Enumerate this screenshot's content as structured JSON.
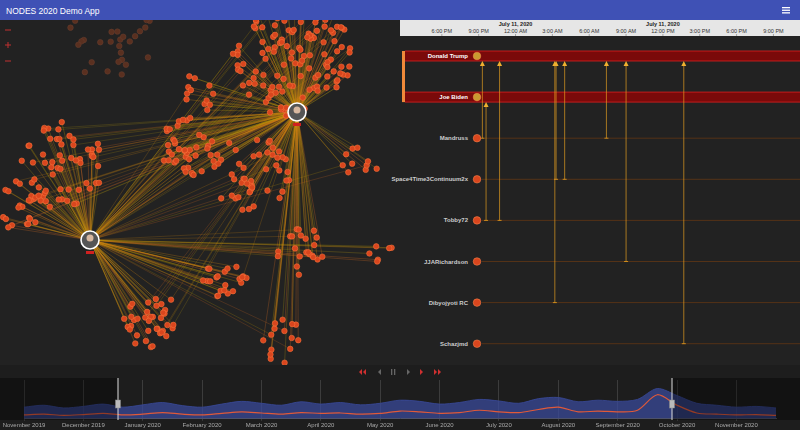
{
  "header": {
    "title": "NODES 2020 Demo App"
  },
  "timeline": {
    "xlim": [
      0,
      32
    ],
    "xticks": [
      {
        "value": 3,
        "label": "6:00 PM"
      },
      {
        "value": 6,
        "label": "9:00 PM"
      },
      {
        "value": 9,
        "label": "12:00 AM"
      },
      {
        "value": 12,
        "label": "3:00 AM"
      },
      {
        "value": 15,
        "label": "6:00 AM"
      },
      {
        "value": 18,
        "label": "9:00 AM"
      },
      {
        "value": 21,
        "label": "12:00 PM"
      },
      {
        "value": 24,
        "label": "3:00 PM"
      },
      {
        "value": 27,
        "label": "6:00 PM"
      },
      {
        "value": 30,
        "label": "9:00 PM"
      }
    ],
    "dates": [
      {
        "value": 9,
        "label": "July 11, 2020"
      },
      {
        "value": 21,
        "label": "July 11, 2020"
      }
    ],
    "rows": [
      {
        "label": "Donald Trump",
        "highlight": true
      },
      {
        "label": "Joe Biden",
        "highlight": true
      },
      {
        "label": "Mandruss",
        "highlight": false
      },
      {
        "label": "Space4Time3Continuum2x",
        "highlight": false
      },
      {
        "label": "Tobby72",
        "highlight": false
      },
      {
        "label": "JJARichardson",
        "highlight": false
      },
      {
        "label": "Dibyojyoti RC",
        "highlight": false
      },
      {
        "label": "Schazjmd",
        "highlight": false
      }
    ],
    "events": [
      {
        "from": "Mandruss",
        "to": "Donald Trump",
        "x": 6.3
      },
      {
        "from": "Tobby72",
        "to": "Joe Biden",
        "x": 6.6
      },
      {
        "from": "Tobby72",
        "to": "Donald Trump",
        "x": 7.7
      },
      {
        "from": "Dibyojyoti RC",
        "to": "Donald Trump",
        "x": 12.2
      },
      {
        "from": "Space4Time3Continuum2x",
        "to": "Donald Trump",
        "x": 12.3
      },
      {
        "from": "Space4Time3Continuum2x",
        "to": "Donald Trump",
        "x": 13.0
      },
      {
        "from": "Mandruss",
        "to": "Donald Trump",
        "x": 16.4
      },
      {
        "from": "JJARichardson",
        "to": "Donald Trump",
        "x": 18.0
      },
      {
        "from": "Schazjmd",
        "to": "Donald Trump",
        "x": 22.7
      }
    ]
  },
  "chart_data": {
    "type": "line",
    "categories": [
      "November 2019",
      null,
      null,
      "December 2019",
      null,
      null,
      "January 2020",
      null,
      null,
      "February 2020",
      null,
      null,
      "March 2020",
      null,
      null,
      "April 2020",
      null,
      null,
      "May 2020",
      null,
      null,
      "June 2020",
      null,
      null,
      "July 2020",
      null,
      null,
      "August 2020",
      null,
      null,
      "September 2020",
      null,
      null,
      "October 2020",
      null,
      null,
      "November 2020",
      null,
      null
    ],
    "series": [
      {
        "type": "area",
        "color": "#3a4a9a",
        "values": [
          30,
          35,
          28,
          32,
          38,
          30,
          36,
          42,
          34,
          30,
          38,
          45,
          40,
          35,
          44,
          38,
          42,
          36,
          40,
          48,
          45,
          38,
          42,
          50,
          46,
          40,
          52,
          55,
          44,
          48,
          45,
          50,
          78,
          60,
          40,
          35,
          30,
          32,
          28
        ]
      },
      {
        "type": "line",
        "color": "#e05a3a",
        "values": [
          10,
          12,
          9,
          11,
          14,
          10,
          12,
          16,
          12,
          10,
          14,
          18,
          15,
          12,
          16,
          14,
          15,
          12,
          14,
          20,
          18,
          14,
          16,
          22,
          18,
          16,
          24,
          30,
          18,
          20,
          18,
          22,
          62,
          35,
          15,
          12,
          10,
          11,
          9
        ]
      }
    ],
    "ylim": [
      0,
      100
    ],
    "grid": true,
    "tick_labels": "x"
  }
}
